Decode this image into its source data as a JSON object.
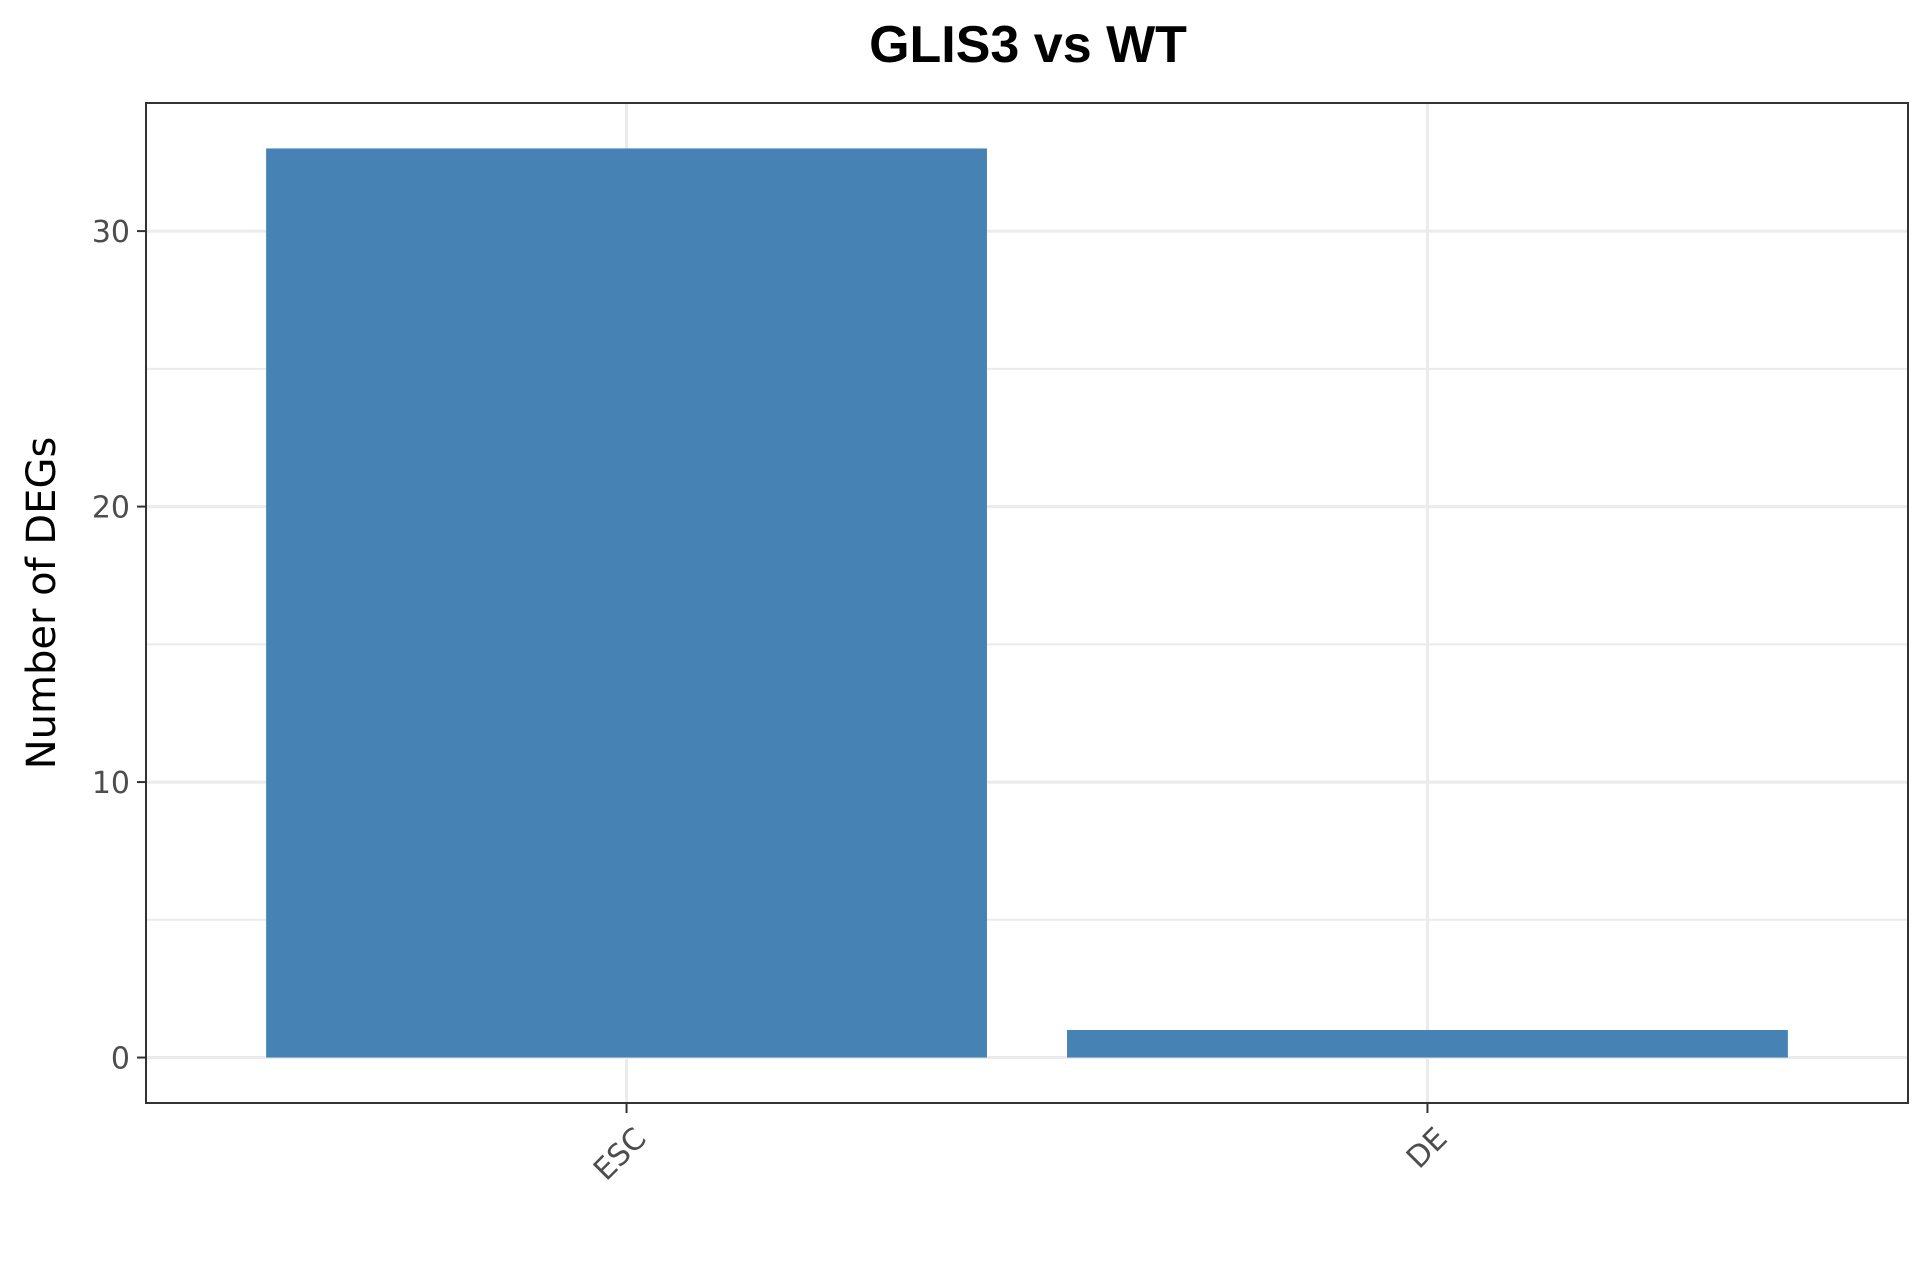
{
  "chart_data": {
    "type": "bar",
    "title": "GLIS3 vs WT",
    "xlabel": "",
    "ylabel": "Number of DEGs",
    "categories": [
      "ESC",
      "DE"
    ],
    "values": [
      33,
      1
    ],
    "ylim": [
      -1.65,
      34.65
    ],
    "yticks": [
      0,
      10,
      20,
      30
    ],
    "ytick_labels": [
      "0",
      "10",
      "20",
      "30"
    ],
    "minor_yticks": [
      5,
      15,
      25
    ],
    "grid": true,
    "legend": "none",
    "bar_color": "#4682B4",
    "grid_color": "#EBEBEB",
    "panel_border_color": "#333333",
    "xtick_rotation": -45
  }
}
